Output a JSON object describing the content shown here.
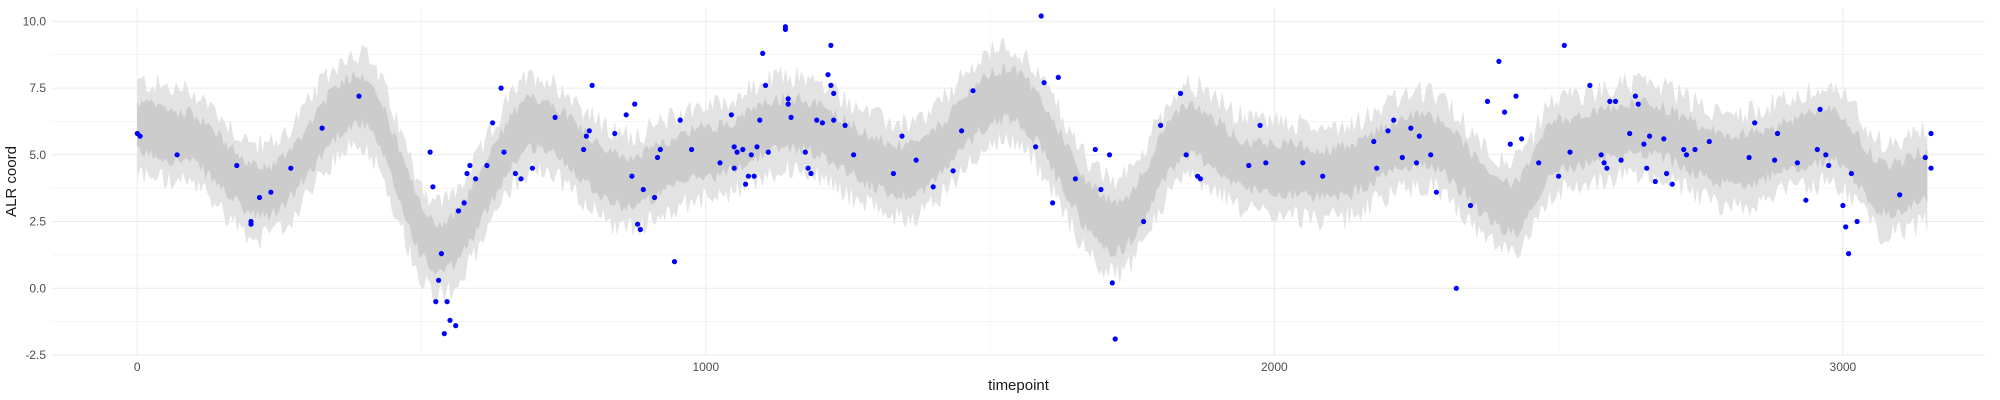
{
  "chart_data": {
    "type": "scatter",
    "title": "",
    "xlabel": "timepoint",
    "ylabel": "ALR coord",
    "xlim": [
      -150,
      3250
    ],
    "ylim": [
      -2.5,
      10.5
    ],
    "x_ticks": [
      0,
      1000,
      2000,
      3000
    ],
    "x_tick_labels": [
      "0",
      "1000",
      "2000",
      "3000"
    ],
    "y_ticks": [
      -2.5,
      0.0,
      2.5,
      5.0,
      7.5,
      10.0
    ],
    "y_tick_labels": [
      "-2.5",
      "0.0",
      "2.5",
      "5.0",
      "7.5",
      "10.0"
    ],
    "grid": true,
    "colors": {
      "points": "#0000ff",
      "band_outer": "#e3e3e3",
      "band_inner": "#cccccc",
      "grid": "#ebebeb"
    },
    "band_x_range": [
      0,
      3150
    ],
    "band_knots": [
      {
        "x": 0,
        "median": 6.0
      },
      {
        "x": 80,
        "median": 5.7
      },
      {
        "x": 220,
        "median": 3.6
      },
      {
        "x": 390,
        "median": 7.1
      },
      {
        "x": 530,
        "median": 1.5
      },
      {
        "x": 700,
        "median": 6.2
      },
      {
        "x": 860,
        "median": 4.0
      },
      {
        "x": 1000,
        "median": 5.1
      },
      {
        "x": 1150,
        "median": 6.2
      },
      {
        "x": 1350,
        "median": 4.4
      },
      {
        "x": 1530,
        "median": 7.3
      },
      {
        "x": 1720,
        "median": 2.3
      },
      {
        "x": 1850,
        "median": 5.9
      },
      {
        "x": 1960,
        "median": 4.6
      },
      {
        "x": 2100,
        "median": 4.3
      },
      {
        "x": 2260,
        "median": 5.6
      },
      {
        "x": 2420,
        "median": 3.0
      },
      {
        "x": 2500,
        "median": 5.4
      },
      {
        "x": 2650,
        "median": 6.0
      },
      {
        "x": 2800,
        "median": 4.8
      },
      {
        "x": 2980,
        "median": 5.7
      },
      {
        "x": 3080,
        "median": 3.7
      },
      {
        "x": 3150,
        "median": 4.2
      }
    ],
    "band_inner_halfwidth": 0.9,
    "band_outer_halfwidth": 1.7,
    "points": [
      [
        0,
        5.8
      ],
      [
        5,
        5.7
      ],
      [
        70,
        5.0
      ],
      [
        175,
        4.6
      ],
      [
        200,
        2.5
      ],
      [
        200,
        2.4
      ],
      [
        215,
        3.4
      ],
      [
        235,
        3.6
      ],
      [
        270,
        4.5
      ],
      [
        325,
        6.0
      ],
      [
        390,
        7.2
      ],
      [
        515,
        5.1
      ],
      [
        520,
        3.8
      ],
      [
        525,
        -0.5
      ],
      [
        530,
        0.3
      ],
      [
        535,
        1.3
      ],
      [
        540,
        -1.7
      ],
      [
        545,
        -0.5
      ],
      [
        550,
        -1.2
      ],
      [
        560,
        -1.4
      ],
      [
        565,
        2.9
      ],
      [
        575,
        3.2
      ],
      [
        580,
        4.3
      ],
      [
        585,
        4.6
      ],
      [
        595,
        4.1
      ],
      [
        615,
        4.6
      ],
      [
        625,
        6.2
      ],
      [
        640,
        7.5
      ],
      [
        645,
        5.1
      ],
      [
        665,
        4.3
      ],
      [
        675,
        4.1
      ],
      [
        695,
        4.5
      ],
      [
        735,
        6.4
      ],
      [
        785,
        5.2
      ],
      [
        790,
        5.7
      ],
      [
        795,
        5.9
      ],
      [
        800,
        7.6
      ],
      [
        840,
        5.8
      ],
      [
        860,
        6.5
      ],
      [
        870,
        4.2
      ],
      [
        875,
        6.9
      ],
      [
        880,
        2.4
      ],
      [
        885,
        2.2
      ],
      [
        890,
        3.7
      ],
      [
        910,
        3.4
      ],
      [
        915,
        4.9
      ],
      [
        920,
        5.2
      ],
      [
        945,
        1.0
      ],
      [
        955,
        6.3
      ],
      [
        975,
        5.2
      ],
      [
        1025,
        4.7
      ],
      [
        1045,
        6.5
      ],
      [
        1050,
        5.3
      ],
      [
        1050,
        4.5
      ],
      [
        1055,
        5.1
      ],
      [
        1065,
        5.2
      ],
      [
        1070,
        3.9
      ],
      [
        1075,
        4.2
      ],
      [
        1080,
        5.0
      ],
      [
        1085,
        4.2
      ],
      [
        1090,
        5.3
      ],
      [
        1095,
        6.3
      ],
      [
        1100,
        8.8
      ],
      [
        1105,
        7.6
      ],
      [
        1110,
        5.1
      ],
      [
        1140,
        9.8
      ],
      [
        1140,
        9.7
      ],
      [
        1145,
        7.1
      ],
      [
        1145,
        6.9
      ],
      [
        1150,
        6.4
      ],
      [
        1175,
        5.1
      ],
      [
        1180,
        4.5
      ],
      [
        1185,
        4.3
      ],
      [
        1195,
        6.3
      ],
      [
        1205,
        6.2
      ],
      [
        1215,
        8.0
      ],
      [
        1220,
        9.1
      ],
      [
        1220,
        7.6
      ],
      [
        1225,
        6.3
      ],
      [
        1225,
        7.3
      ],
      [
        1245,
        6.1
      ],
      [
        1260,
        5.0
      ],
      [
        1330,
        4.3
      ],
      [
        1345,
        5.7
      ],
      [
        1370,
        4.8
      ],
      [
        1400,
        3.8
      ],
      [
        1435,
        4.4
      ],
      [
        1450,
        5.9
      ],
      [
        1470,
        7.4
      ],
      [
        1580,
        5.3
      ],
      [
        1590,
        10.2
      ],
      [
        1595,
        7.7
      ],
      [
        1610,
        3.2
      ],
      [
        1620,
        7.9
      ],
      [
        1650,
        4.1
      ],
      [
        1685,
        5.2
      ],
      [
        1695,
        3.7
      ],
      [
        1710,
        5.0
      ],
      [
        1715,
        0.2
      ],
      [
        1720,
        -1.9
      ],
      [
        1770,
        2.5
      ],
      [
        1800,
        6.1
      ],
      [
        1835,
        7.3
      ],
      [
        1845,
        5.0
      ],
      [
        1865,
        4.2
      ],
      [
        1870,
        4.1
      ],
      [
        1955,
        4.6
      ],
      [
        1975,
        6.1
      ],
      [
        1985,
        4.7
      ],
      [
        2050,
        4.7
      ],
      [
        2085,
        4.2
      ],
      [
        2175,
        5.5
      ],
      [
        2180,
        4.5
      ],
      [
        2200,
        5.9
      ],
      [
        2210,
        6.3
      ],
      [
        2225,
        4.9
      ],
      [
        2240,
        6.0
      ],
      [
        2250,
        4.7
      ],
      [
        2255,
        5.7
      ],
      [
        2275,
        5.0
      ],
      [
        2285,
        3.6
      ],
      [
        2320,
        0.0
      ],
      [
        2345,
        3.1
      ],
      [
        2375,
        7.0
      ],
      [
        2395,
        8.5
      ],
      [
        2405,
        6.6
      ],
      [
        2415,
        5.4
      ],
      [
        2425,
        7.2
      ],
      [
        2435,
        5.6
      ],
      [
        2465,
        4.7
      ],
      [
        2500,
        4.2
      ],
      [
        2510,
        9.1
      ],
      [
        2520,
        5.1
      ],
      [
        2555,
        7.6
      ],
      [
        2575,
        5.0
      ],
      [
        2580,
        4.7
      ],
      [
        2585,
        4.5
      ],
      [
        2590,
        7.0
      ],
      [
        2600,
        7.0
      ],
      [
        2610,
        4.8
      ],
      [
        2625,
        5.8
      ],
      [
        2635,
        7.2
      ],
      [
        2640,
        6.9
      ],
      [
        2650,
        5.4
      ],
      [
        2655,
        4.5
      ],
      [
        2660,
        5.7
      ],
      [
        2670,
        4.0
      ],
      [
        2685,
        5.6
      ],
      [
        2690,
        4.3
      ],
      [
        2700,
        3.9
      ],
      [
        2720,
        5.2
      ],
      [
        2725,
        5.0
      ],
      [
        2740,
        5.2
      ],
      [
        2765,
        5.5
      ],
      [
        2835,
        4.9
      ],
      [
        2845,
        6.2
      ],
      [
        2880,
        4.8
      ],
      [
        2885,
        5.8
      ],
      [
        2920,
        4.7
      ],
      [
        2935,
        3.3
      ],
      [
        2955,
        5.2
      ],
      [
        2960,
        6.7
      ],
      [
        2970,
        5.0
      ],
      [
        2975,
        4.6
      ],
      [
        3000,
        3.1
      ],
      [
        3005,
        2.3
      ],
      [
        3010,
        1.3
      ],
      [
        3015,
        4.3
      ],
      [
        3025,
        2.5
      ],
      [
        3100,
        3.5
      ],
      [
        3145,
        4.9
      ],
      [
        3155,
        5.8
      ],
      [
        3155,
        4.5
      ]
    ]
  }
}
